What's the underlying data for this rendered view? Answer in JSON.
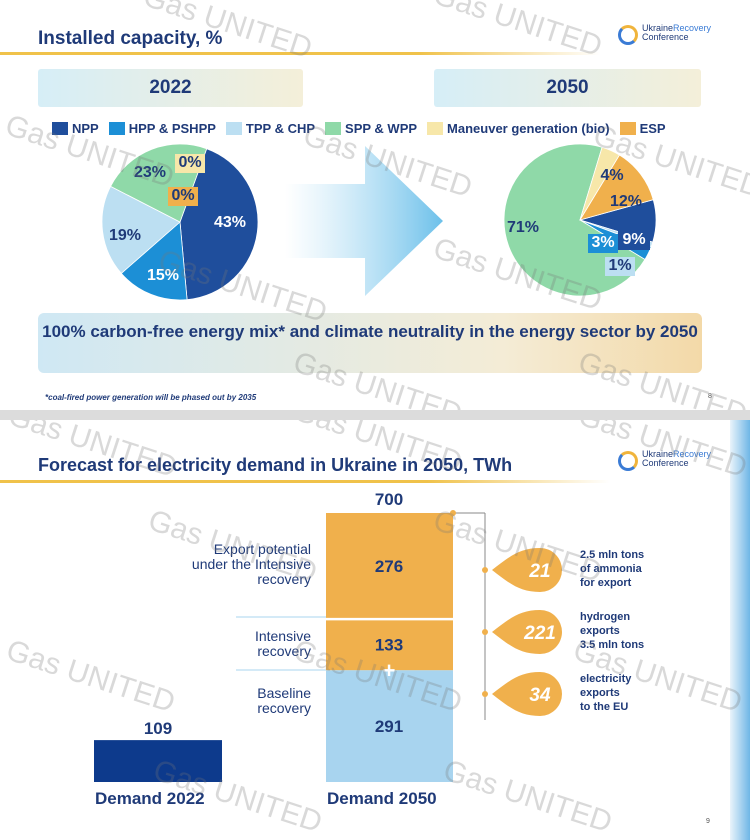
{
  "slide1": {
    "title": "Installed capacity, %",
    "logo_name": "Ukraine",
    "logo_name_2": "Recovery",
    "logo_sub": "Conference",
    "year_left": "2022",
    "year_right": "2050",
    "banner": "100% carbon-free energy mix* and climate neutrality in the energy sector by 2050",
    "footnote": "*coal-fired power generation will be phased out by 2035",
    "page": "8"
  },
  "slide2": {
    "title": "Forecast for electricity demand in Ukraine in 2050, TWh",
    "logo_name": "Ukraine",
    "logo_name_2": "Recovery",
    "logo_sub": "Conference",
    "page": "9",
    "plus": "+"
  },
  "watermark": "Gas UNITED",
  "colors": {
    "NPP": "#1f4e9c",
    "HPP & PSHPP": "#1c8fd6",
    "TPP & CHP": "#bcdff2",
    "SPP & WPP": "#8fd9a8",
    "Maneuver generation (bio)": "#f7e7a9",
    "ESP": "#f0b04c",
    "demand_2022": "#0d3a8c",
    "baseline": "#a8d4ef",
    "intensive": "#f0b04c",
    "title_text": "#1f3a78"
  },
  "chart_data": [
    {
      "type": "pie",
      "title": "2022",
      "legend": [
        "NPP",
        "HPP & PSHPP",
        "TPP & CHP",
        "SPP & WPP",
        "Maneuver generation (bio)",
        "ESP"
      ],
      "series": [
        {
          "name": "NPP",
          "value": 43,
          "label": "43%"
        },
        {
          "name": "HPP & PSHPP",
          "value": 15,
          "label": "15%"
        },
        {
          "name": "TPP & CHP",
          "value": 19,
          "label": "19%"
        },
        {
          "name": "SPP & WPP",
          "value": 23,
          "label": "23%"
        },
        {
          "name": "Maneuver generation (bio)",
          "value": 0,
          "label": "0%"
        },
        {
          "name": "ESP",
          "value": 0,
          "label": "0%"
        }
      ]
    },
    {
      "type": "pie",
      "title": "2050",
      "series": [
        {
          "name": "NPP",
          "value": 9,
          "label": "9%"
        },
        {
          "name": "TPP & CHP",
          "value": 1,
          "label": "1%"
        },
        {
          "name": "HPP & PSHPP",
          "value": 3,
          "label": "3%"
        },
        {
          "name": "SPP & WPP",
          "value": 71,
          "label": "71%"
        },
        {
          "name": "Maneuver generation (bio)",
          "value": 4,
          "label": "4%"
        },
        {
          "name": "ESP",
          "value": 12,
          "label": "12%"
        }
      ]
    },
    {
      "type": "bar",
      "title": "Forecast for electricity demand in Ukraine in 2050, TWh",
      "categories": [
        "Demand 2022",
        "Demand 2050"
      ],
      "ylim": [
        0,
        700
      ],
      "bars": [
        {
          "category": "Demand 2022",
          "segments": [
            {
              "name": "Demand 2022",
              "value": 109
            }
          ],
          "total": "109"
        },
        {
          "category": "Demand 2050",
          "segments": [
            {
              "name": "Baseline recovery",
              "value": 291
            },
            {
              "name": "Intensive recovery",
              "value": 133
            },
            {
              "name": "Export potential under the Intensive recovery",
              "value": 276
            }
          ],
          "total": "700"
        }
      ],
      "segment_labels": {
        "baseline": [
          "Baseline",
          "recovery"
        ],
        "intensive": [
          "Intensive",
          "recovery"
        ],
        "export": [
          "Export potential",
          "under the Intensive",
          "recovery"
        ]
      },
      "export_breakdown": [
        {
          "value": 21,
          "text": [
            "2.5 mln tons",
            "of ammonia",
            "for export"
          ]
        },
        {
          "value": 221,
          "text": [
            "hydrogen",
            "exports",
            "3.5 mln tons"
          ]
        },
        {
          "value": 34,
          "text": [
            "electricity",
            "exports",
            "to the EU"
          ]
        }
      ]
    }
  ]
}
